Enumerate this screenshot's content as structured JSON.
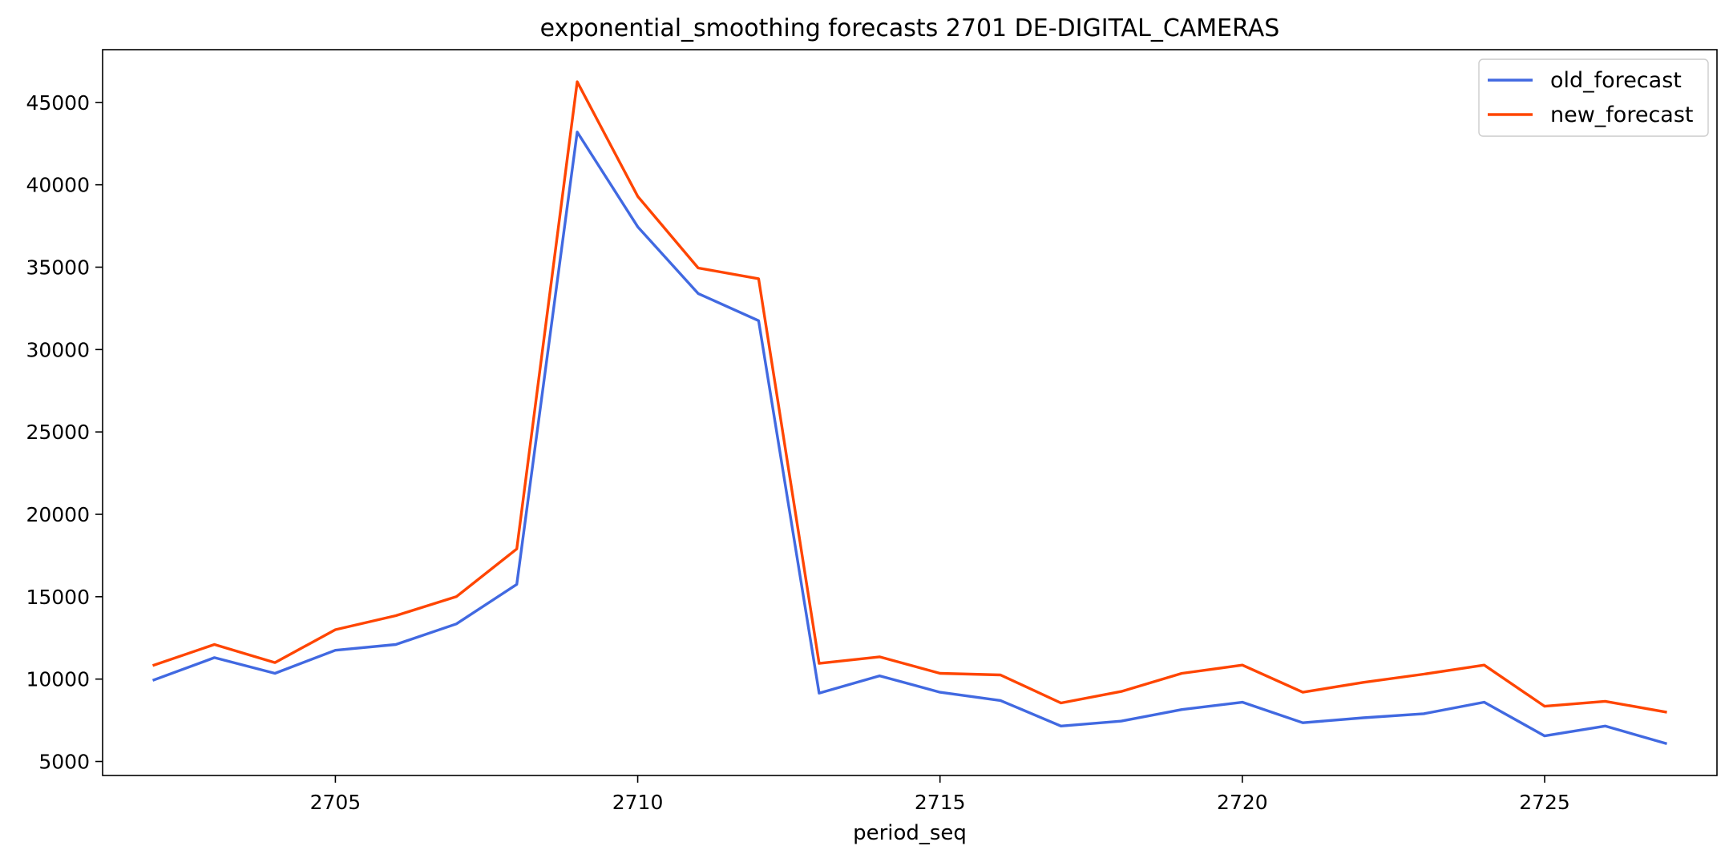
{
  "chart_data": {
    "type": "line",
    "title": "exponential_smoothing forecasts 2701 DE-DIGITAL_CAMERAS",
    "xlabel": "period_seq",
    "ylabel": "",
    "xlim": [
      2701.15,
      2727.85
    ],
    "ylim": [
      4150,
      48200
    ],
    "x_ticks": [
      2705,
      2710,
      2715,
      2720,
      2725
    ],
    "y_ticks": [
      5000,
      10000,
      15000,
      20000,
      25000,
      30000,
      35000,
      40000,
      45000
    ],
    "x": [
      2702,
      2703,
      2704,
      2705,
      2706,
      2707,
      2708,
      2709,
      2710,
      2711,
      2712,
      2713,
      2714,
      2715,
      2716,
      2717,
      2718,
      2719,
      2720,
      2721,
      2722,
      2723,
      2724,
      2725,
      2726,
      2727
    ],
    "legend_position": "top-right",
    "grid": false,
    "series": [
      {
        "name": "old_forecast",
        "color": "#4169e1",
        "values": [
          9950,
          11300,
          10350,
          11750,
          12100,
          13350,
          15750,
          43200,
          37450,
          33400,
          31750,
          9150,
          10200,
          9200,
          8700,
          7150,
          7450,
          8150,
          8600,
          7350,
          7650,
          7900,
          8600,
          6550,
          7150,
          6100
        ]
      },
      {
        "name": "new_forecast",
        "color": "#ff4500",
        "values": [
          10850,
          12100,
          11000,
          13000,
          13850,
          15000,
          17900,
          46250,
          39300,
          34950,
          34300,
          10950,
          11350,
          10350,
          10250,
          8550,
          9250,
          10350,
          10850,
          9200,
          9800,
          10300,
          10850,
          8350,
          8650,
          8000
        ]
      }
    ]
  }
}
